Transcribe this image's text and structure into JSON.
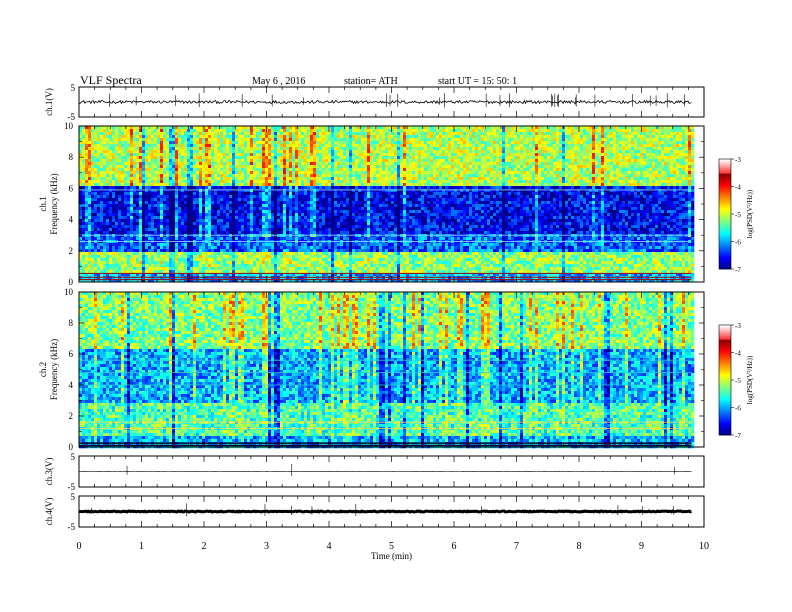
{
  "header": {
    "title": "VLF  Spectra",
    "date": "May 6  , 2016",
    "station": "station= ATH",
    "start": "start  UT =   15: 50: 1"
  },
  "chart_data": [
    {
      "type": "line",
      "ylabel": "ch.1(V)",
      "ylim": [
        -5,
        5
      ],
      "yticks": [
        "5",
        "-5"
      ],
      "xlim": [
        0,
        10
      ],
      "baseline": 0,
      "noise": 0.5
    },
    {
      "type": "heatmap",
      "ylabel": "ch.1",
      "ylabel2": "Frequency  (kHz)",
      "ylim": [
        0,
        10
      ],
      "yticks": [
        "0",
        "2",
        "4",
        "6",
        "8",
        "10"
      ],
      "xlim": [
        0,
        10
      ],
      "data_end_min": 9.8,
      "colorbar": {
        "label": "log(PSD(V²/Hz))",
        "range": [
          -7,
          -3
        ],
        "ticks": [
          "-3",
          "-4",
          "-5",
          "-6",
          "-7"
        ]
      }
    },
    {
      "type": "heatmap",
      "ylabel": "ch.2",
      "ylabel2": "Frequency  (kHz)",
      "ylim": [
        0,
        10
      ],
      "yticks": [
        "0",
        "2",
        "4",
        "6",
        "8",
        "10"
      ],
      "xlim": [
        0,
        10
      ],
      "data_end_min": 9.8,
      "colorbar": {
        "label": "log(PSD(V²/Hz))",
        "range": [
          -7,
          -3
        ],
        "ticks": [
          "-3",
          "-4",
          "-5",
          "-6",
          "-7"
        ]
      }
    },
    {
      "type": "line",
      "ylabel": "ch.3(V)",
      "ylim": [
        -5,
        5
      ],
      "yticks": [
        "5",
        "-5"
      ],
      "xlim": [
        0,
        10
      ],
      "baseline": 0,
      "noise": 0.05
    },
    {
      "type": "line",
      "ylabel": "ch.4(V)",
      "ylim": [
        -5,
        5
      ],
      "yticks": [
        "5",
        "-5"
      ],
      "xlim": [
        0,
        10
      ],
      "baseline": 0,
      "noise": 0.15
    }
  ],
  "xaxis": {
    "label": "Time  (min)",
    "ticks": [
      "0",
      "1",
      "2",
      "3",
      "4",
      "5",
      "6",
      "7",
      "8",
      "9",
      "10"
    ]
  }
}
